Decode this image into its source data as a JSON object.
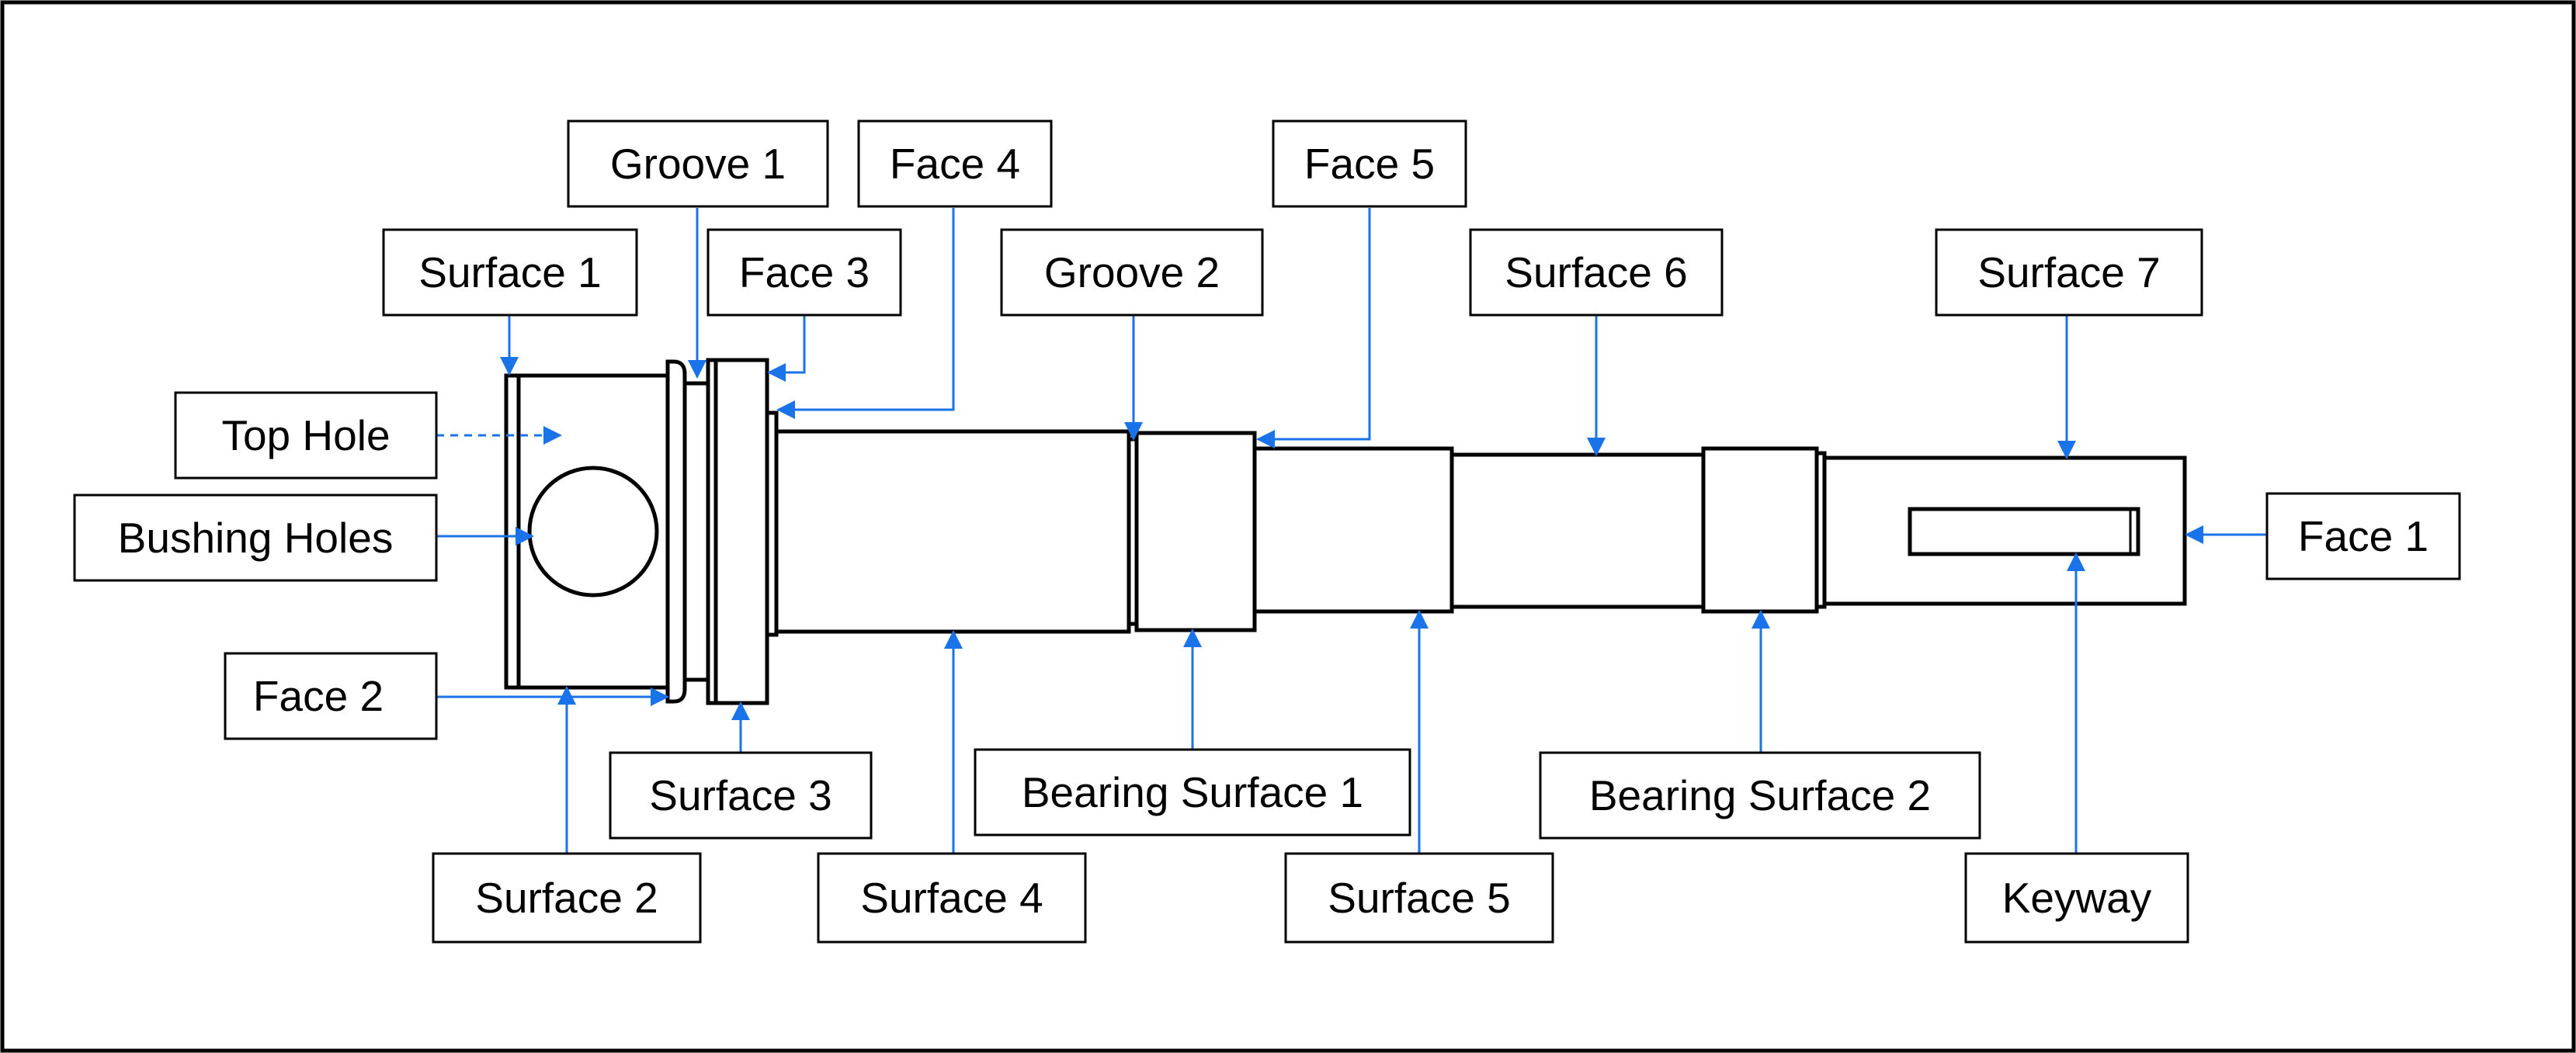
{
  "labels": {
    "groove_1": "Groove 1",
    "face_4": "Face 4",
    "face_5": "Face 5",
    "surface_1": "Surface 1",
    "face_3": "Face 3",
    "groove_2": "Groove 2",
    "surface_6": "Surface 6",
    "surface_7": "Surface 7",
    "top_hole": "Top Hole",
    "bushing_holes": "Bushing Holes",
    "face_1": "Face 1",
    "face_2": "Face 2",
    "surface_3": "Surface 3",
    "bearing_surface_1": "Bearing Surface 1",
    "bearing_surface_2": "Bearing Surface 2",
    "surface_2": "Surface 2",
    "surface_4": "Surface 4",
    "surface_5": "Surface 5",
    "keyway": "Keyway"
  },
  "colors": {
    "leader": "#1a73e8",
    "outline": "#000000",
    "background": "#ffffff"
  }
}
